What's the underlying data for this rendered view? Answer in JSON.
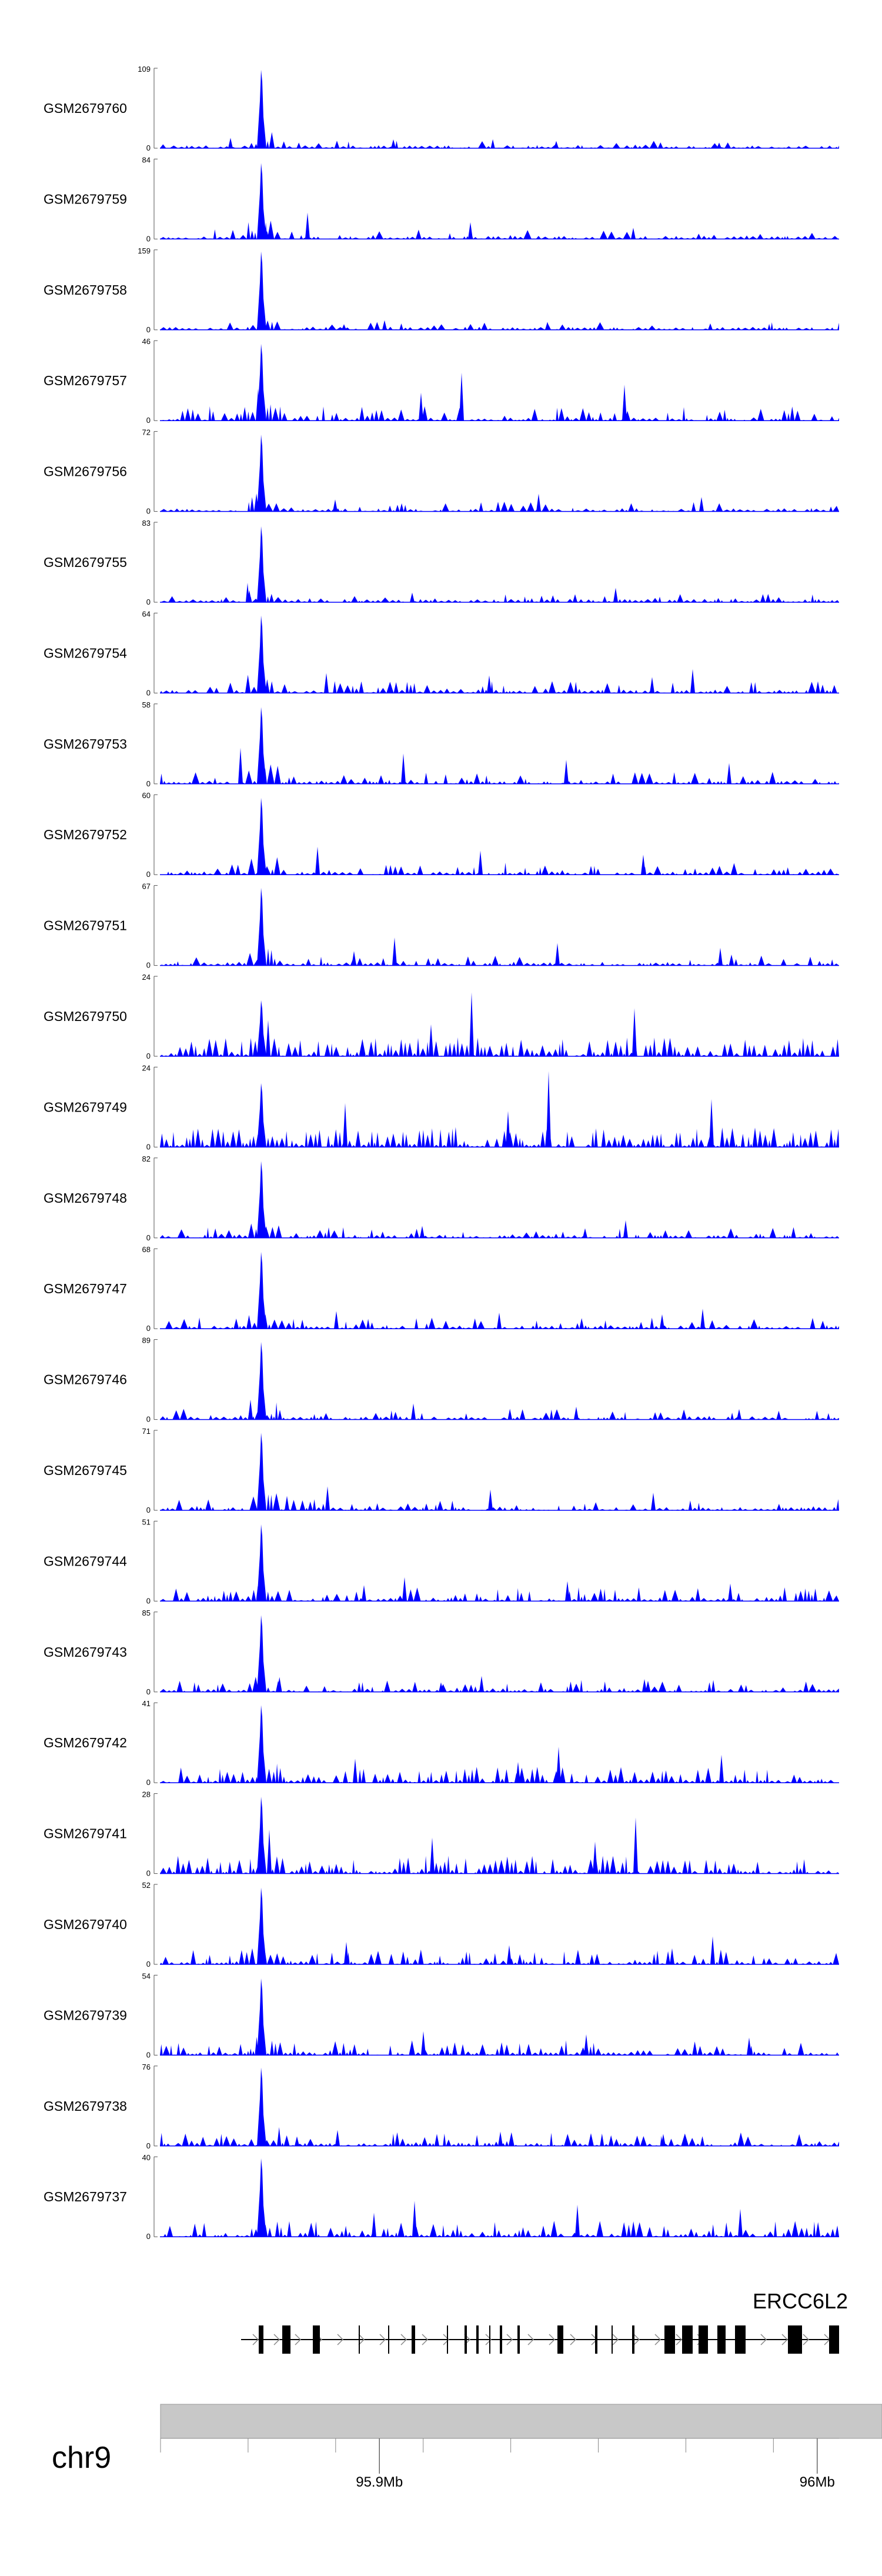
{
  "chart_data": {
    "type": "area",
    "title": "",
    "description_free": true,
    "track_color": "#0000ff",
    "tracks": [
      {
        "name": "GSM2679760",
        "ymax": "109",
        "ymin": "0",
        "peak": 0.98,
        "density": 0.25,
        "spikes": [
          0.13,
          0.11,
          0.09,
          0.07
        ]
      },
      {
        "name": "GSM2679759",
        "ymax": "84",
        "ymin": "0",
        "peak": 0.95,
        "density": 0.3,
        "spikes": [
          0.33,
          0.21,
          0.14,
          0.1
        ]
      },
      {
        "name": "GSM2679758",
        "ymax": "159",
        "ymin": "0",
        "peak": 0.98,
        "density": 0.22,
        "spikes": [
          0.12,
          0.1,
          0.08,
          0.07
        ]
      },
      {
        "name": "GSM2679757",
        "ymax": "46",
        "ymin": "0",
        "peak": 0.96,
        "density": 0.55,
        "spikes": [
          0.6,
          0.45,
          0.4,
          0.35
        ]
      },
      {
        "name": "GSM2679756",
        "ymax": "72",
        "ymin": "0",
        "peak": 0.96,
        "density": 0.3,
        "spikes": [
          0.22,
          0.18,
          0.15,
          0.12
        ]
      },
      {
        "name": "GSM2679755",
        "ymax": "83",
        "ymin": "0",
        "peak": 0.95,
        "density": 0.25,
        "spikes": [
          0.18,
          0.15,
          0.12,
          0.1
        ]
      },
      {
        "name": "GSM2679754",
        "ymax": "64",
        "ymin": "0",
        "peak": 0.97,
        "density": 0.4,
        "spikes": [
          0.3,
          0.25,
          0.22,
          0.2
        ]
      },
      {
        "name": "GSM2679753",
        "ymax": "58",
        "ymin": "0",
        "peak": 0.96,
        "density": 0.4,
        "spikes": [
          0.45,
          0.38,
          0.3,
          0.26
        ]
      },
      {
        "name": "GSM2679752",
        "ymax": "60",
        "ymin": "0",
        "peak": 0.96,
        "density": 0.4,
        "spikes": [
          0.35,
          0.3,
          0.25,
          0.2
        ]
      },
      {
        "name": "GSM2679751",
        "ymax": "67",
        "ymin": "0",
        "peak": 0.97,
        "density": 0.35,
        "spikes": [
          0.35,
          0.28,
          0.22,
          0.18
        ]
      },
      {
        "name": "GSM2679750",
        "ymax": "24",
        "ymin": "0",
        "peak": 0.7,
        "density": 0.75,
        "spikes": [
          0.8,
          0.6,
          0.45,
          0.4
        ]
      },
      {
        "name": "GSM2679749",
        "ymax": "24",
        "ymin": "0",
        "peak": 0.8,
        "density": 0.8,
        "spikes": [
          0.95,
          0.6,
          0.55,
          0.45
        ]
      },
      {
        "name": "GSM2679748",
        "ymax": "82",
        "ymin": "0",
        "peak": 0.96,
        "density": 0.35,
        "spikes": [
          0.22,
          0.18,
          0.15,
          0.12
        ]
      },
      {
        "name": "GSM2679747",
        "ymax": "68",
        "ymin": "0",
        "peak": 0.96,
        "density": 0.4,
        "spikes": [
          0.25,
          0.22,
          0.2,
          0.18
        ]
      },
      {
        "name": "GSM2679746",
        "ymax": "89",
        "ymin": "0",
        "peak": 0.97,
        "density": 0.35,
        "spikes": [
          0.25,
          0.2,
          0.16,
          0.13
        ]
      },
      {
        "name": "GSM2679745",
        "ymax": "71",
        "ymin": "0",
        "peak": 0.97,
        "density": 0.4,
        "spikes": [
          0.3,
          0.26,
          0.22,
          0.18
        ]
      },
      {
        "name": "GSM2679744",
        "ymax": "51",
        "ymin": "0",
        "peak": 0.96,
        "density": 0.5,
        "spikes": [
          0.3,
          0.25,
          0.22,
          0.2
        ]
      },
      {
        "name": "GSM2679743",
        "ymax": "85",
        "ymin": "0",
        "peak": 0.96,
        "density": 0.4,
        "spikes": [
          0.2,
          0.16,
          0.14,
          0.12
        ]
      },
      {
        "name": "GSM2679742",
        "ymax": "41",
        "ymin": "0",
        "peak": 0.97,
        "density": 0.6,
        "spikes": [
          0.45,
          0.35,
          0.3,
          0.26
        ]
      },
      {
        "name": "GSM2679741",
        "ymax": "28",
        "ymin": "0",
        "peak": 0.96,
        "density": 0.7,
        "spikes": [
          0.7,
          0.55,
          0.45,
          0.4
        ]
      },
      {
        "name": "GSM2679740",
        "ymax": "52",
        "ymin": "0",
        "peak": 0.96,
        "density": 0.55,
        "spikes": [
          0.35,
          0.28,
          0.24,
          0.2
        ]
      },
      {
        "name": "GSM2679739",
        "ymax": "54",
        "ymin": "0",
        "peak": 0.96,
        "density": 0.55,
        "spikes": [
          0.35,
          0.3,
          0.26,
          0.22
        ]
      },
      {
        "name": "GSM2679738",
        "ymax": "76",
        "ymin": "0",
        "peak": 0.98,
        "density": 0.5,
        "spikes": [
          0.2,
          0.18,
          0.15,
          0.12
        ]
      },
      {
        "name": "GSM2679737",
        "ymax": "40",
        "ymin": "0",
        "peak": 0.98,
        "density": 0.6,
        "spikes": [
          0.45,
          0.4,
          0.35,
          0.3
        ]
      }
    ],
    "gene": {
      "name": "ERCC6L2",
      "color": "#000000",
      "strand": "+"
    },
    "ideogram": {
      "chromosome": "chr9",
      "band_color": "#c8c8c8"
    },
    "axis": {
      "unit": "Mb",
      "tick_labels": [
        "95.9Mb",
        "96Mb"
      ],
      "tick_values": [
        95.9,
        96.0
      ],
      "minor_step": 0.02,
      "range": [
        95.85,
        96.005
      ]
    }
  }
}
